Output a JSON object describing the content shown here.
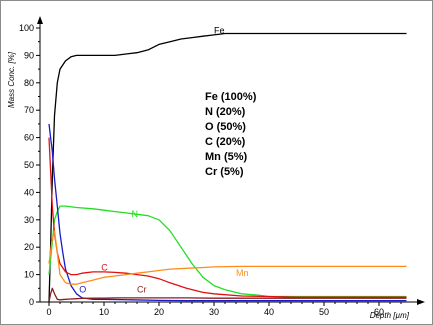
{
  "chart_data": {
    "type": "line",
    "title": "",
    "xlabel": "Depth [µm]",
    "ylabel": "Mass Conc. [%]",
    "xlim": [
      -1,
      68
    ],
    "ylim": [
      0,
      100
    ],
    "x_ticks": [
      0,
      10,
      20,
      30,
      40,
      50,
      60
    ],
    "y_ticks": [
      0,
      10,
      20,
      30,
      40,
      50,
      60,
      70,
      80,
      90,
      100
    ],
    "grid": false,
    "legend_lines": [
      "Fe (100%)",
      "N (20%)",
      "O (50%)",
      "C (20%)",
      "Mn (5%)",
      "Cr (5%)"
    ],
    "series": [
      {
        "name": "Fe",
        "color": "#000000",
        "label_at": [
          30,
          98
        ],
        "x": [
          0,
          0.3,
          0.6,
          1,
          1.5,
          2,
          3,
          4,
          5,
          6,
          8,
          10,
          12,
          14,
          16,
          18,
          20,
          22,
          24,
          26,
          28,
          30,
          32,
          35,
          38,
          40,
          45,
          50,
          55,
          60,
          65
        ],
        "y": [
          0,
          20,
          45,
          68,
          80,
          85,
          88,
          89.5,
          90,
          90,
          90,
          90,
          90,
          90.5,
          91,
          92,
          94,
          95,
          96,
          96.5,
          97,
          97.5,
          98,
          98,
          98,
          98,
          98,
          98,
          98,
          98,
          98
        ]
      },
      {
        "name": "N",
        "color": "#22dd22",
        "label_at": [
          15,
          31
        ],
        "x": [
          0,
          0.5,
          1,
          1.5,
          2,
          3,
          5,
          8,
          10,
          12,
          14,
          16,
          18,
          20,
          22,
          24,
          26,
          28,
          30,
          32,
          35,
          38,
          40,
          45,
          50,
          55,
          60,
          65
        ],
        "y": [
          10,
          20,
          30,
          33,
          35,
          35,
          34.5,
          34,
          33.5,
          33,
          32.5,
          32,
          31.5,
          30,
          26,
          20,
          14,
          9,
          6,
          4.5,
          3,
          2.5,
          2,
          2,
          2,
          2,
          2,
          2
        ]
      },
      {
        "name": "O",
        "color": "#1a1acc",
        "label_at": [
          5.5,
          3.5
        ],
        "x": [
          0,
          0.3,
          0.6,
          1,
          1.5,
          2,
          2.5,
          3,
          4,
          5,
          6,
          8,
          10,
          15,
          20,
          25,
          30,
          40,
          50,
          60,
          65
        ],
        "y": [
          65,
          60,
          55,
          45,
          35,
          25,
          18,
          12,
          6,
          3,
          1.5,
          1,
          1,
          0.8,
          0.6,
          0.5,
          0.5,
          0.5,
          0.5,
          0.5,
          0.5
        ]
      },
      {
        "name": "C",
        "color": "#e01010",
        "label_at": [
          9.5,
          11.5
        ],
        "x": [
          0,
          0.3,
          0.6,
          1,
          1.5,
          2,
          3,
          4,
          5,
          6,
          8,
          10,
          12,
          14,
          16,
          18,
          20,
          22,
          25,
          28,
          30,
          35,
          40,
          45,
          50,
          55,
          60,
          65
        ],
        "y": [
          60,
          48,
          35,
          25,
          18,
          14,
          11,
          10,
          10,
          10.5,
          11,
          11,
          10.8,
          10.5,
          10,
          9.5,
          8.5,
          7,
          5,
          3.5,
          3,
          2.2,
          2,
          1.8,
          1.8,
          1.8,
          1.8,
          1.8
        ]
      },
      {
        "name": "Mn",
        "color": "#ff8c1a",
        "label_at": [
          34,
          9.5
        ],
        "x": [
          0,
          0.5,
          1,
          1.5,
          2,
          3,
          4,
          5,
          6,
          8,
          10,
          12,
          14,
          16,
          18,
          20,
          22,
          25,
          28,
          30,
          35,
          40,
          45,
          50,
          55,
          60,
          65
        ],
        "y": [
          14,
          22,
          26,
          18,
          10,
          7,
          6.5,
          6.5,
          7,
          8,
          9,
          9.5,
          10,
          10.5,
          11,
          11.5,
          12,
          12.3,
          12.6,
          12.8,
          13,
          13,
          13,
          13,
          13,
          13,
          13
        ]
      },
      {
        "name": "Cr",
        "color": "#8a1f1f",
        "label_at": [
          16,
          3.5
        ],
        "x": [
          0,
          0.3,
          0.6,
          1,
          1.5,
          2,
          3,
          4,
          5,
          6,
          8,
          10,
          12,
          14,
          16,
          18,
          20,
          22,
          25,
          30,
          35,
          40,
          45,
          50,
          55,
          60,
          65
        ],
        "y": [
          0,
          3,
          5,
          3,
          1,
          0.8,
          1,
          1.1,
          1.2,
          1.3,
          1.4,
          1.4,
          1.5,
          1.5,
          1.5,
          1.5,
          1.5,
          1.5,
          1.5,
          1.4,
          1.4,
          1.4,
          1.4,
          1.4,
          1.4,
          1.4,
          1.4
        ]
      }
    ]
  }
}
